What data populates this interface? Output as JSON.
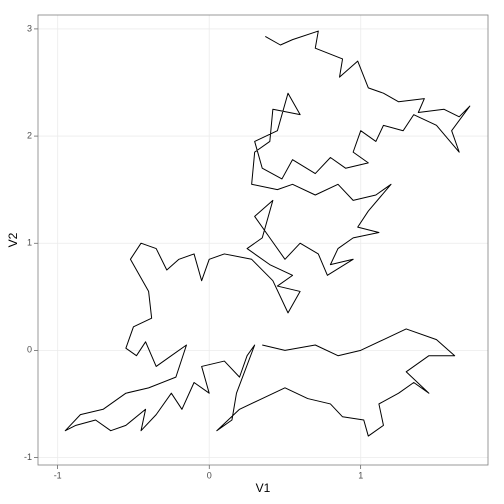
{
  "chart_data": {
    "type": "line",
    "xlabel": "V1",
    "ylabel": "V2",
    "color": "#000000",
    "grid": true,
    "xlim": [
      -1.13,
      1.84
    ],
    "ylim": [
      -1.07,
      3.13
    ],
    "xticks": [
      -1,
      0,
      1
    ],
    "yticks": [
      -1,
      0,
      1,
      2,
      3
    ],
    "x": [
      0.37,
      0.47,
      0.55,
      0.72,
      0.7,
      0.88,
      0.86,
      0.98,
      1.05,
      1.15,
      1.25,
      1.42,
      1.38,
      1.55,
      1.65,
      1.72,
      1.6,
      1.65,
      1.5,
      1.35,
      1.28,
      1.15,
      1.1,
      1.0,
      0.95,
      1.05,
      0.9,
      0.8,
      0.7,
      0.55,
      0.48,
      0.35,
      0.3,
      0.45,
      0.52,
      0.6,
      0.42,
      0.4,
      0.3,
      0.28,
      0.45,
      0.55,
      0.7,
      0.85,
      0.95,
      1.1,
      1.2,
      1.05,
      0.98,
      1.12,
      0.95,
      0.85,
      0.8,
      0.95,
      0.78,
      0.72,
      0.6,
      0.5,
      0.4,
      0.3,
      0.42,
      0.35,
      0.25,
      0.4,
      0.55,
      0.45,
      0.6,
      0.52,
      0.42,
      0.28,
      0.1,
      0.0,
      -0.05,
      -0.1,
      -0.2,
      -0.28,
      -0.35,
      -0.45,
      -0.52,
      -0.4,
      -0.38,
      -0.5,
      -0.55,
      -0.48,
      -0.42,
      -0.35,
      -0.25,
      -0.15,
      -0.22,
      -0.4,
      -0.55,
      -0.7,
      -0.85,
      -0.95,
      -0.88,
      -0.75,
      -0.65,
      -0.55,
      -0.42,
      -0.45,
      -0.35,
      -0.25,
      -0.18,
      -0.1,
      0.0,
      -0.05,
      0.1,
      0.2,
      0.25,
      0.3,
      0.18,
      0.15,
      0.05,
      0.2,
      0.35,
      0.5,
      0.65,
      0.8,
      0.88,
      1.02,
      1.05,
      1.15,
      1.12,
      1.25,
      1.35,
      1.45,
      1.3,
      1.45,
      1.62,
      1.5,
      1.3,
      1.15,
      1.0,
      0.85,
      0.7,
      0.5,
      0.35
    ],
    "series": [
      {
        "values": [
          2.93,
          2.85,
          2.9,
          2.98,
          2.82,
          2.72,
          2.55,
          2.7,
          2.45,
          2.4,
          2.32,
          2.35,
          2.22,
          2.25,
          2.18,
          2.28,
          2.05,
          1.85,
          2.1,
          2.2,
          2.05,
          2.1,
          1.95,
          2.05,
          1.85,
          1.75,
          1.7,
          1.8,
          1.65,
          1.78,
          1.6,
          1.7,
          1.95,
          2.05,
          2.4,
          2.2,
          2.25,
          1.95,
          1.85,
          1.55,
          1.5,
          1.55,
          1.45,
          1.55,
          1.4,
          1.45,
          1.55,
          1.3,
          1.15,
          1.1,
          1.05,
          0.95,
          0.8,
          0.85,
          0.7,
          0.9,
          1.0,
          0.85,
          1.05,
          1.25,
          1.4,
          1.05,
          0.95,
          0.8,
          0.7,
          0.6,
          0.55,
          0.35,
          0.65,
          0.85,
          0.9,
          0.85,
          0.65,
          0.9,
          0.85,
          0.75,
          0.95,
          1.0,
          0.85,
          0.55,
          0.3,
          0.22,
          0.02,
          -0.05,
          0.08,
          -0.15,
          -0.05,
          0.05,
          -0.25,
          -0.35,
          -0.4,
          -0.55,
          -0.6,
          -0.75,
          -0.7,
          -0.65,
          -0.75,
          -0.7,
          -0.55,
          -0.75,
          -0.6,
          -0.4,
          -0.55,
          -0.3,
          -0.4,
          -0.15,
          -0.1,
          -0.25,
          -0.05,
          0.05,
          -0.4,
          -0.65,
          -0.75,
          -0.55,
          -0.45,
          -0.35,
          -0.45,
          -0.5,
          -0.62,
          -0.65,
          -0.8,
          -0.7,
          -0.5,
          -0.4,
          -0.3,
          -0.4,
          -0.2,
          -0.05,
          -0.05,
          0.1,
          0.2,
          0.1,
          0.0,
          -0.05,
          0.05,
          0.0,
          0.05
        ]
      }
    ]
  }
}
